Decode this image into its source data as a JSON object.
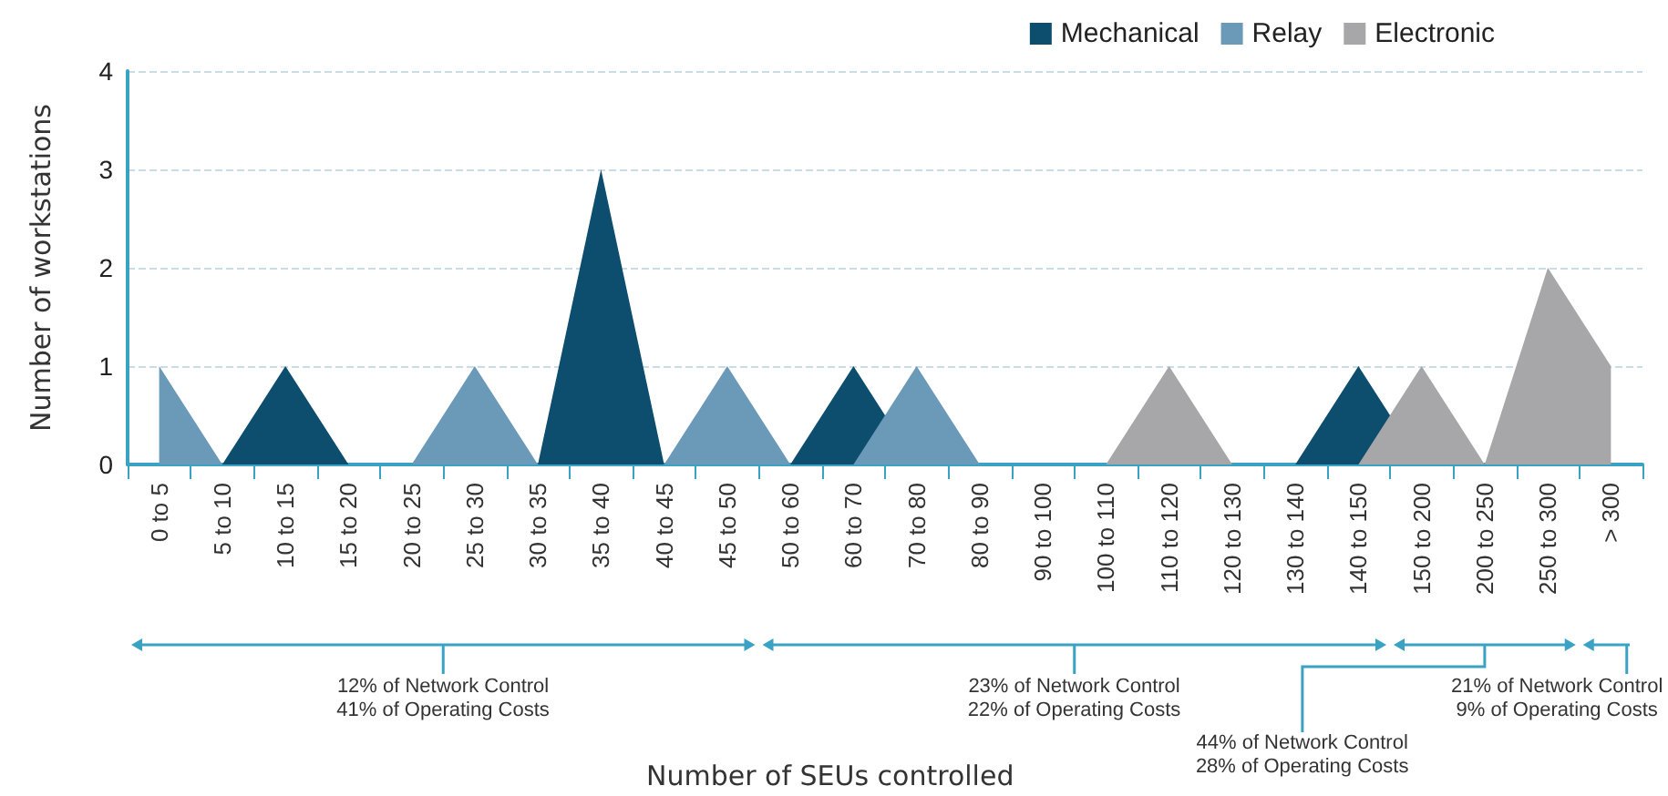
{
  "chart_data": {
    "type": "area",
    "ylabel": "Number of workstations",
    "categories": [
      "0 to 5",
      "5 to 10",
      "10 to 15",
      "15 to 20",
      "20 to 25",
      "25 to 30",
      "30 to 35",
      "35 to 40",
      "40 to 45",
      "45 to 50",
      "50 to 60",
      "60 to 70",
      "70 to 80",
      "80 to 90",
      "90 to 100",
      "100 to 110",
      "110 to 120",
      "120 to 130",
      "130 to 140",
      "140 to 150",
      "150 to 200",
      "200 to 250",
      "250 to 300",
      "> 300"
    ],
    "series": [
      {
        "name": "Mechanical",
        "color": "#0d4e6e",
        "values": [
          0,
          0,
          1,
          0,
          0,
          0,
          0,
          3,
          0,
          0,
          0,
          1,
          0,
          0,
          0,
          0,
          0,
          0,
          0,
          1,
          0,
          0,
          0,
          0
        ]
      },
      {
        "name": "Relay",
        "color": "#6b9ab8",
        "values": [
          1,
          0,
          0,
          0,
          0,
          1,
          0,
          0,
          0,
          1,
          0,
          0,
          1,
          0,
          0,
          0,
          0,
          0,
          0,
          0,
          0,
          0,
          0,
          0
        ]
      },
      {
        "name": "Electronic",
        "color": "#a7a7a9",
        "values": [
          0,
          0,
          0,
          0,
          0,
          0,
          0,
          0,
          0,
          0,
          0,
          0,
          0,
          0,
          0,
          0,
          1,
          0,
          0,
          0,
          1,
          0,
          2,
          1
        ]
      }
    ],
    "ylim": [
      0,
      4
    ],
    "yticks": [
      0,
      1,
      2,
      3,
      4
    ],
    "grid": "y",
    "legend": "top right",
    "annotations": [
      "12% of Network Control\n41% of Operating Costs",
      "23% of Network Control\n22% of Operating Costs",
      "44% of Network Control\n28% of Operating Costs",
      "21% of Network Control\n9% of Operating Costs",
      "Number of SEUs controlled"
    ]
  }
}
